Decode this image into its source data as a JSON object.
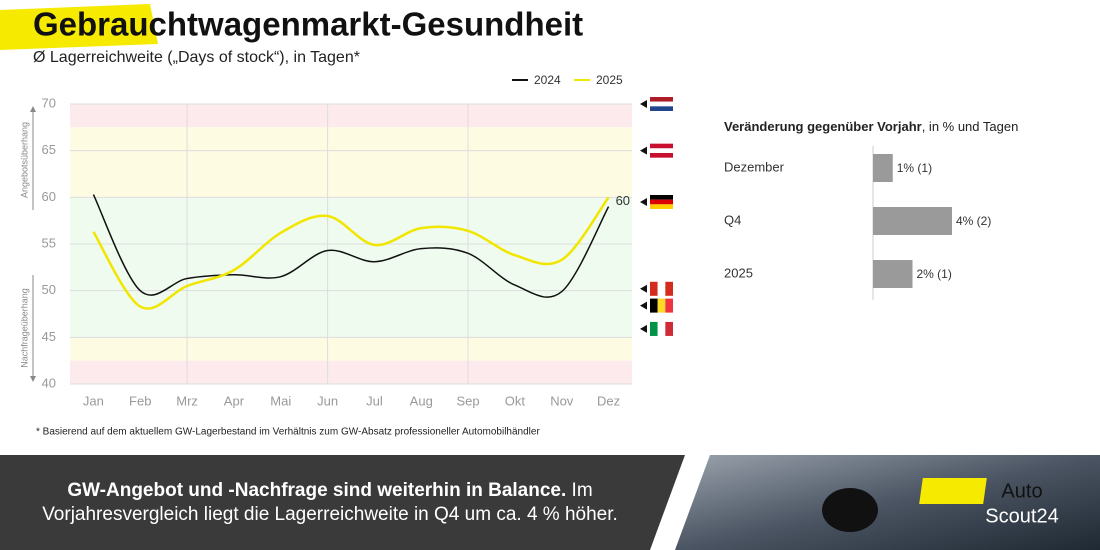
{
  "header": {
    "title": "Gebrauchtwagenmarkt-Gesundheit",
    "subtitle": "Ø Lagerreichweite („Days of stock“), in Tagen*"
  },
  "chart_data": [
    {
      "type": "line",
      "categories": [
        "Jan",
        "Feb",
        "Mrz",
        "Apr",
        "Mai",
        "Jun",
        "Jul",
        "Aug",
        "Sep",
        "Okt",
        "Nov",
        "Dez"
      ],
      "series": [
        {
          "name": "2024",
          "color": "#111111",
          "values": [
            60.3,
            50,
            51.3,
            51.7,
            51.5,
            54.3,
            53.1,
            54.5,
            54,
            50.6,
            49.9,
            59
          ]
        },
        {
          "name": "2025",
          "color": "#f2e600",
          "values": [
            56.3,
            48.3,
            50.5,
            52.2,
            56.2,
            58,
            54.9,
            56.7,
            56.4,
            53.8,
            53.3,
            60
          ],
          "show_last_value": true
        }
      ],
      "ylim": [
        40,
        70
      ],
      "yticks": [
        40,
        45,
        50,
        55,
        60,
        65,
        70
      ],
      "grid": true,
      "y_label_upper": "Angebotsüberhang",
      "y_label_lower": "Nachfrageüberhang",
      "bands": [
        {
          "range": [
            67.5,
            70
          ],
          "color": "#fdeaec"
        },
        {
          "range": [
            60,
            67.5
          ],
          "color": "#fefbe3"
        },
        {
          "range": [
            45,
            60
          ],
          "color": "#eefbee"
        },
        {
          "range": [
            42.5,
            45
          ],
          "color": "#fefbe3"
        },
        {
          "range": [
            40,
            42.5
          ],
          "color": "#fdeaec"
        }
      ],
      "markers": [
        {
          "value": 70,
          "colors": [
            "#ae1c28",
            "#ffffff",
            "#21468b"
          ],
          "stripes": "h"
        },
        {
          "value": 65,
          "colors": [
            "#c8102e",
            "#ffffff",
            "#c8102e"
          ],
          "stripes": "h"
        },
        {
          "value": 59.5,
          "colors": [
            "#000000",
            "#dd0000",
            "#ffce00"
          ],
          "stripes": "h"
        },
        {
          "value": 50.2,
          "colors": [
            "#d52b1e",
            "#ffffff",
            "#d52b1e"
          ],
          "stripes": "v"
        },
        {
          "value": 48.4,
          "colors": [
            "#000000",
            "#fdda24",
            "#ef3340"
          ],
          "stripes": "v"
        },
        {
          "value": 45.9,
          "colors": [
            "#009246",
            "#ffffff",
            "#ce2b37"
          ],
          "stripes": "v"
        }
      ]
    },
    {
      "type": "hbar",
      "title": "Veränderung gegenüber Vorjahr",
      "title_suffix": ", in % und Tagen",
      "categories": [
        "Dezember",
        "Q4",
        "2025"
      ],
      "values": [
        1,
        4,
        2
      ],
      "value_labels": [
        "1% (1)",
        "4% (2)",
        "2% (1)"
      ],
      "color": "#9a9a9a"
    }
  ],
  "footnote": "* Basierend auf dem aktuellem GW-Lagerbestand im Verhältnis zum GW-Absatz professioneller Automobilhändler",
  "banner": {
    "bold": "GW-Angebot und -Nachfrage sind weiterhin in Balance.",
    "text": " Im Vorjahresvergleich liegt die Lagerreichweite in Q4 um ca. 4 % höher."
  },
  "logo": {
    "line1": "Auto",
    "line2": "Scout24"
  }
}
